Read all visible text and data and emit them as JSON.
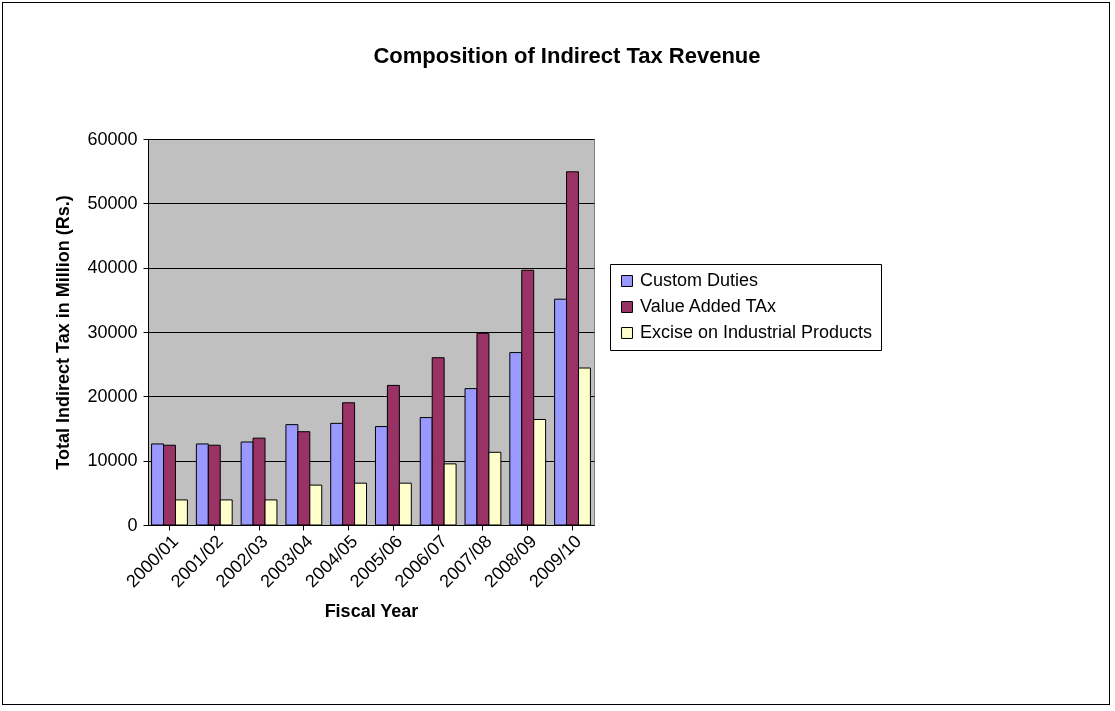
{
  "chart_data": {
    "type": "bar",
    "title": "Composition of Indirect Tax Revenue",
    "xlabel": "Fiscal Year",
    "ylabel": "Total Indirect Tax in Million (Rs.)",
    "categories": [
      "2000/01",
      "2001/02",
      "2002/03",
      "2003/04",
      "2004/05",
      "2005/06",
      "2006/07",
      "2007/08",
      "2008/09",
      "2009/10"
    ],
    "series": [
      {
        "name": "Custom Duties",
        "color": "#9999ff",
        "values": [
          12600,
          12600,
          12900,
          15600,
          15800,
          15300,
          16700,
          21200,
          26800,
          35100
        ]
      },
      {
        "name": "Value Added TAx",
        "color": "#993366",
        "values": [
          12400,
          12400,
          13500,
          14500,
          19000,
          21700,
          26000,
          29800,
          39600,
          54900
        ]
      },
      {
        "name": "Excise on Industrial Products",
        "color": "#ffffcc",
        "values": [
          3900,
          3900,
          3900,
          6200,
          6500,
          6500,
          9500,
          11300,
          16400,
          24400
        ]
      }
    ],
    "ylim": [
      0,
      60000
    ],
    "yticks": [
      0,
      10000,
      20000,
      30000,
      40000,
      50000,
      60000
    ],
    "grid": "y",
    "legend": "right"
  }
}
